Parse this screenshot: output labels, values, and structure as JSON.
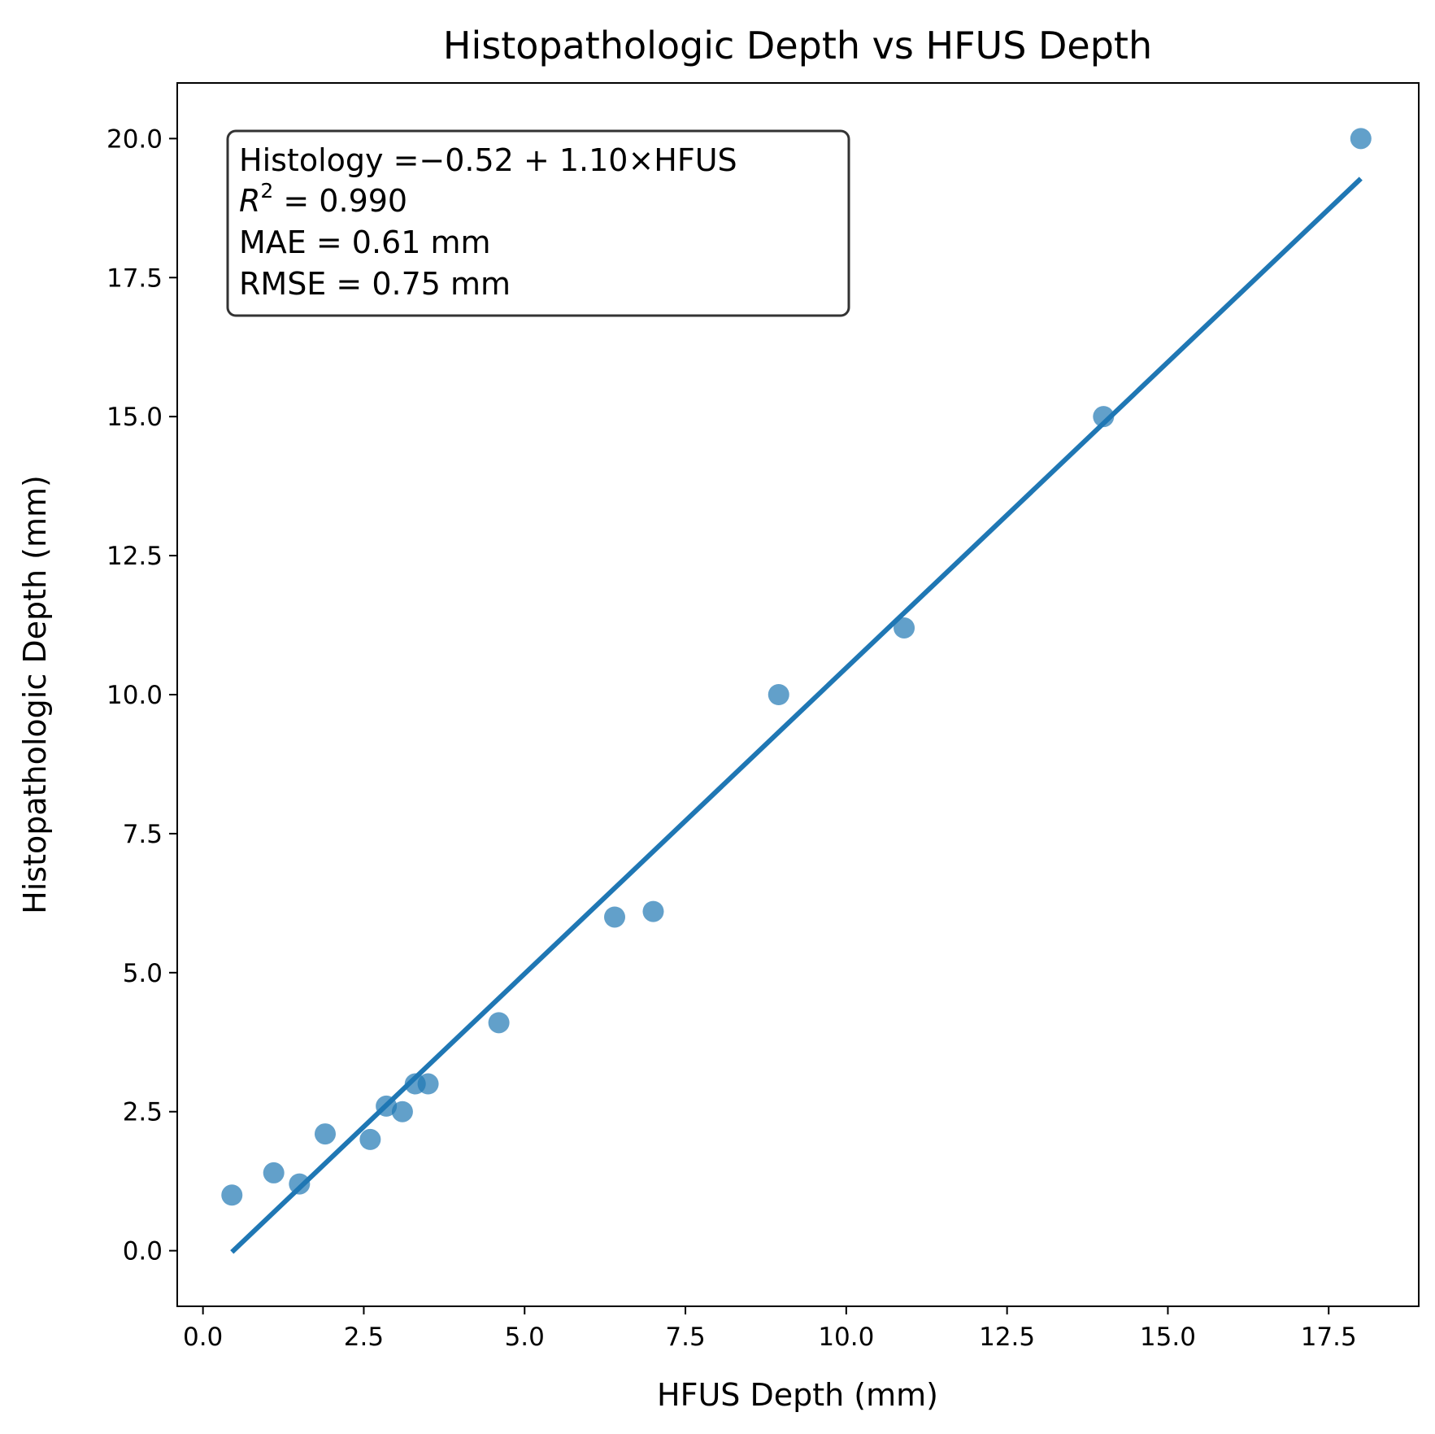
{
  "chart_data": {
    "type": "scatter",
    "title": "Histopathologic Depth vs HFUS Depth",
    "xlabel": "HFUS Depth (mm)",
    "ylabel": "Histopathologic Depth (mm)",
    "xlim": [
      -0.4,
      18.9
    ],
    "ylim": [
      -1.0,
      21.0
    ],
    "xticks": [
      0.0,
      2.5,
      5.0,
      7.5,
      10.0,
      12.5,
      15.0,
      17.5
    ],
    "yticks": [
      0.0,
      2.5,
      5.0,
      7.5,
      10.0,
      12.5,
      15.0,
      17.5,
      20.0
    ],
    "grid": false,
    "points": {
      "color": "#1f77b4",
      "x": [
        0.45,
        1.1,
        1.5,
        1.9,
        2.6,
        2.85,
        3.1,
        3.3,
        3.5,
        4.6,
        6.4,
        7.0,
        8.95,
        10.9,
        14.0,
        18.0
      ],
      "y": [
        1.0,
        1.4,
        1.2,
        2.1,
        2.0,
        2.6,
        2.5,
        3.0,
        3.0,
        4.1,
        6.0,
        6.1,
        10.0,
        11.2,
        15.0,
        20.0
      ]
    },
    "fit_line": {
      "color": "#1f77b4",
      "intercept": -0.52,
      "slope": 1.1,
      "x_range": [
        0.45,
        18.0
      ]
    },
    "annotation": {
      "lines": [
        "Histology =−0.52 + 1.10×HFUS",
        "R",
        "2",
        " = 0.990",
        "MAE = 0.61 mm",
        "RMSE = 0.75 mm"
      ]
    }
  }
}
